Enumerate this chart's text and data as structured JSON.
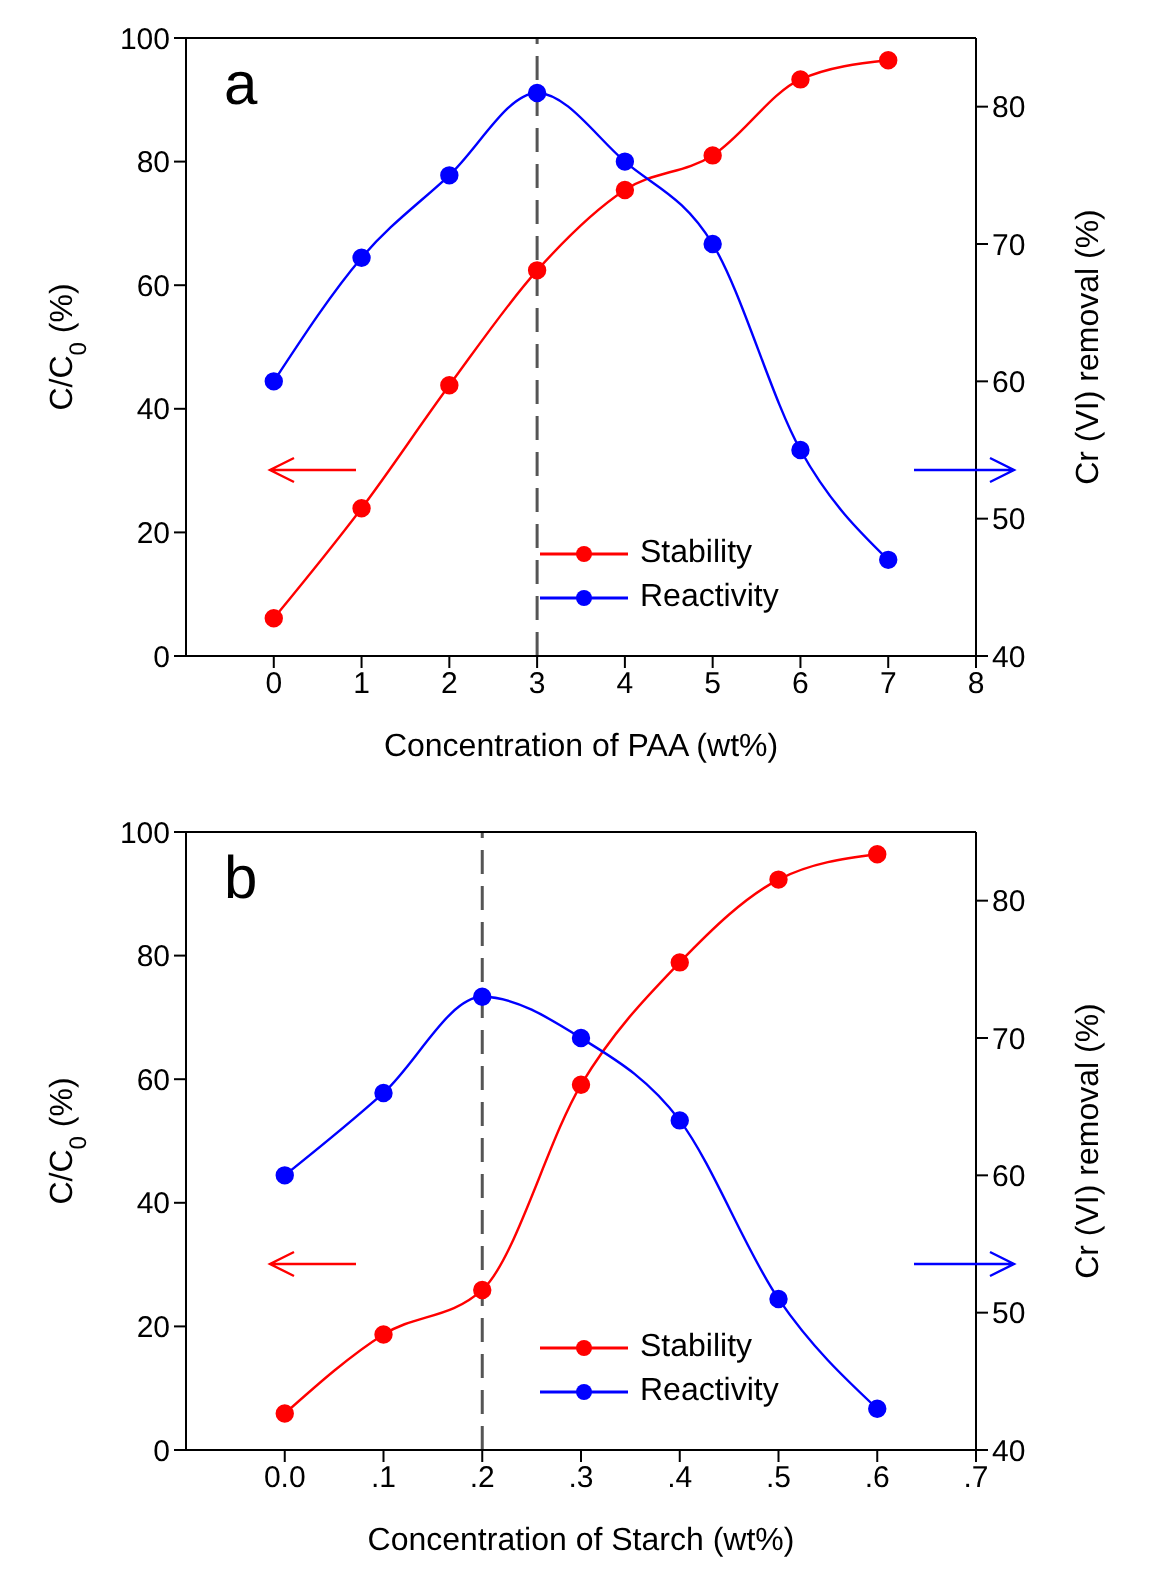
{
  "chart_data": [
    {
      "type": "line",
      "annotations": [
        "a"
      ],
      "xlabel": "Concentration of PAA (wt%)",
      "ylabel": "C/C$_{0}$ (%)",
      "y2label": "Cr (VI) removal (%)",
      "x": [
        0,
        1,
        2,
        3,
        4,
        5,
        6,
        7
      ],
      "series": [
        {
          "name": "Stability",
          "color": "#ff0000",
          "values": [
            6.1,
            23.9,
            43.8,
            62.4,
            75.4,
            81.0,
            93.3,
            96.4
          ]
        },
        {
          "name": "Reactivity",
          "color": "#0000ff",
          "axis": "y2",
          "values": [
            60,
            69,
            75,
            81,
            76,
            70,
            55,
            47
          ]
        }
      ],
      "xlim": [
        -1,
        8
      ],
      "xticks": [
        0,
        1,
        2,
        3,
        4,
        5,
        6,
        7,
        8
      ],
      "ylim": [
        0,
        100
      ],
      "yticks": [
        0,
        20,
        40,
        60,
        80,
        100
      ],
      "y2lim": [
        40,
        85
      ],
      "y2ticks": [
        40,
        50,
        60,
        70,
        80
      ],
      "ref_lines": [
        {
          "axis": "x",
          "value": 3,
          "color": "#555555",
          "line_style": "dashed"
        }
      ],
      "marker": "circle",
      "grid": false,
      "legend": "bottom"
    },
    {
      "type": "line",
      "annotations": [
        "b"
      ],
      "xlabel": "Concentration of Starch (wt%)",
      "ylabel": "C/C$_{0}$ (%)",
      "y2label": "Cr (VI) removal (%)",
      "x": [
        0,
        0.1,
        0.2,
        0.3,
        0.4,
        0.5,
        0.6
      ],
      "series": [
        {
          "name": "Stability",
          "color": "#ff0000",
          "values": [
            5.9,
            18.7,
            25.9,
            59.1,
            78.9,
            92.3,
            96.4
          ]
        },
        {
          "name": "Reactivity",
          "color": "#0000ff",
          "axis": "y2",
          "values": [
            60,
            66,
            73,
            70,
            64,
            51,
            43
          ]
        }
      ],
      "xlim": [
        -0.1,
        0.7
      ],
      "xticks": [
        {
          "value": 0,
          "label": "0.0"
        },
        {
          "value": 0.1,
          "label": ".1"
        },
        {
          "value": 0.2,
          "label": ".2"
        },
        {
          "value": 0.3,
          "label": ".3"
        },
        {
          "value": 0.4,
          "label": ".4"
        },
        {
          "value": 0.5,
          "label": ".5"
        },
        {
          "value": 0.6,
          "label": ".6"
        },
        {
          "value": 0.7,
          "label": ".7"
        }
      ],
      "ylim": [
        0,
        100
      ],
      "yticks": [
        0,
        20,
        40,
        60,
        80,
        100
      ],
      "y2lim": [
        40,
        85
      ],
      "y2ticks": [
        40,
        50,
        60,
        70,
        80
      ],
      "ref_lines": [
        {
          "axis": "x",
          "value": 0.2,
          "color": "#555555",
          "line_style": "dashed"
        }
      ],
      "marker": "circle",
      "grid": false,
      "legend": "bottom"
    }
  ]
}
